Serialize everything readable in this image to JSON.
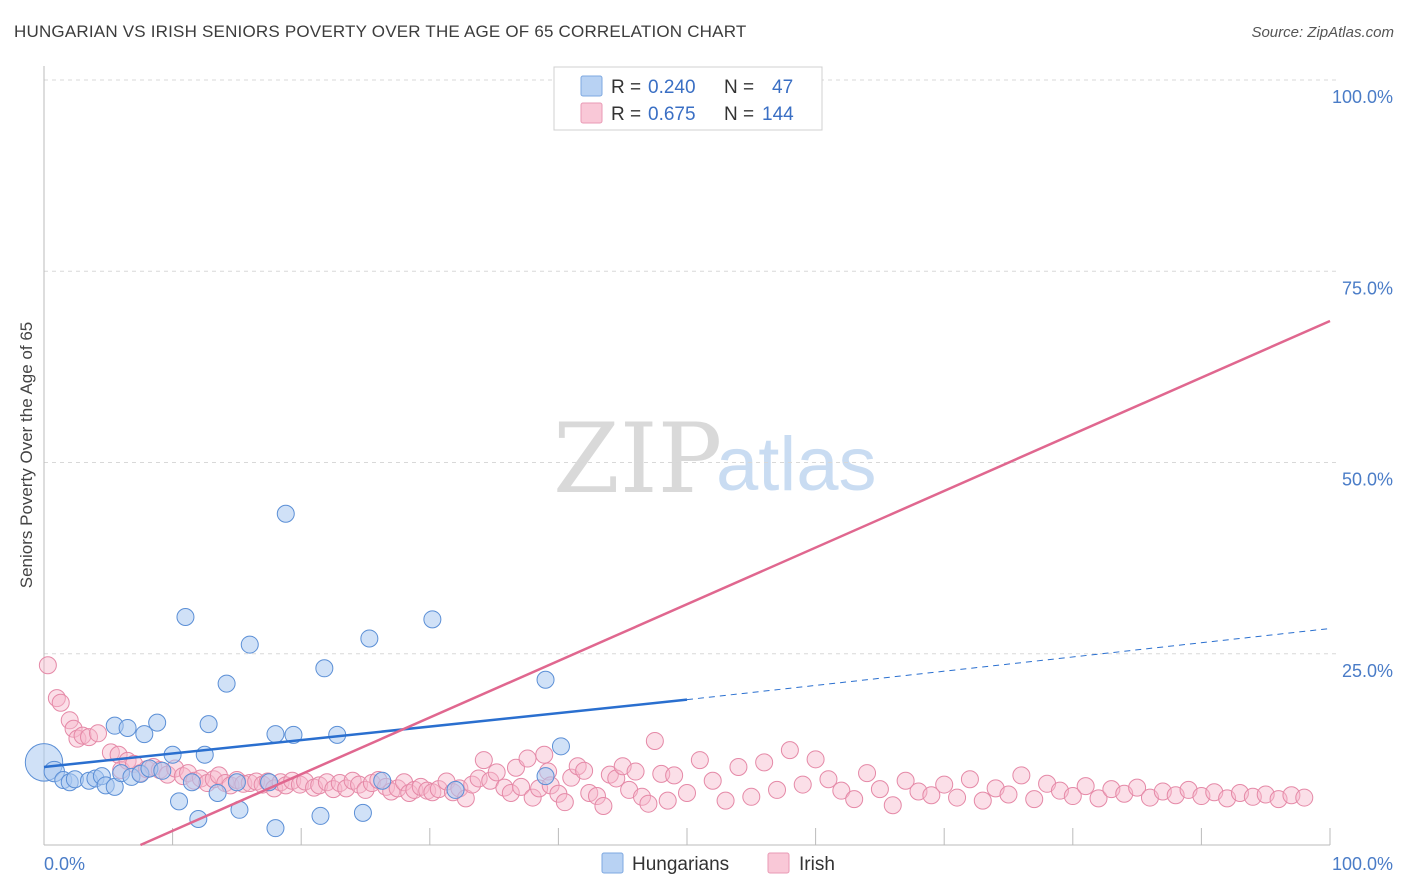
{
  "title": "HUNGARIAN VS IRISH SENIORS POVERTY OVER THE AGE OF 65 CORRELATION CHART",
  "source": "Source: ZipAtlas.com",
  "watermark": {
    "zip": "ZIP",
    "atlas": "atlas"
  },
  "colors": {
    "hungarian_fill": "#a9c8f0",
    "hungarian_stroke": "#5b8fd6",
    "hungarian_line": "#2a6fcf",
    "irish_fill": "#f7b8cb",
    "irish_stroke": "#e589a7",
    "irish_line": "#e0678f",
    "grid": "#d8d8d8",
    "axis_label": "#4a7cc7"
  },
  "legend": {
    "rows": [
      {
        "r_label": "R =",
        "r_value": "0.240",
        "n_label": "N =",
        "n_value": "47"
      },
      {
        "r_label": "R =",
        "r_value": "0.675",
        "n_label": "N =",
        "n_value": "144"
      }
    ]
  },
  "chart_data": {
    "type": "scatter",
    "ylabel": "Seniors Poverty Over the Age of 65",
    "xlim": [
      0,
      100
    ],
    "ylim": [
      0,
      100
    ],
    "x_tick_labels": [
      {
        "value": 0,
        "label": "0.0%"
      },
      {
        "value": 100,
        "label": "100.0%"
      }
    ],
    "y_tick_labels": [
      {
        "value": 25,
        "label": "25.0%"
      },
      {
        "value": 50,
        "label": "50.0%"
      },
      {
        "value": 75,
        "label": "75.0%"
      },
      {
        "value": 100,
        "label": "100.0%"
      }
    ],
    "grid": true,
    "legend_position": "bottom",
    "series": [
      {
        "name": "Hungarians",
        "trend": {
          "x0": 0,
          "y0": 10.2,
          "x1": 50,
          "y1": 19.0,
          "dashed_to_x": 100,
          "dashed_to_y": 28.3
        },
        "points": [
          [
            0.0,
            10.8,
            2.2
          ],
          [
            0.8,
            9.6,
            1.2
          ],
          [
            1.5,
            8.5,
            1
          ],
          [
            2.0,
            8.2,
            1
          ],
          [
            2.4,
            8.6,
            1
          ],
          [
            3.5,
            8.4,
            1
          ],
          [
            4.0,
            8.7,
            1
          ],
          [
            4.5,
            9.0,
            1
          ],
          [
            4.8,
            7.8,
            1
          ],
          [
            5.5,
            7.6,
            1
          ],
          [
            5.5,
            15.6,
            1
          ],
          [
            6.0,
            9.4,
            1
          ],
          [
            6.5,
            15.3,
            1
          ],
          [
            6.8,
            8.9,
            1
          ],
          [
            7.5,
            9.3,
            1
          ],
          [
            7.8,
            14.5,
            1
          ],
          [
            8.2,
            10.0,
            1
          ],
          [
            8.8,
            16.0,
            1
          ],
          [
            9.2,
            9.7,
            1
          ],
          [
            10.0,
            11.8,
            1
          ],
          [
            10.5,
            5.7,
            1
          ],
          [
            11.0,
            29.8,
            1
          ],
          [
            11.5,
            8.2,
            1
          ],
          [
            12.0,
            3.4,
            1
          ],
          [
            12.5,
            11.8,
            1
          ],
          [
            12.8,
            15.8,
            1
          ],
          [
            13.5,
            6.8,
            1
          ],
          [
            14.2,
            21.1,
            1
          ],
          [
            15.0,
            8.2,
            1
          ],
          [
            15.2,
            4.6,
            1
          ],
          [
            16.0,
            26.2,
            1
          ],
          [
            17.5,
            8.2,
            1
          ],
          [
            18.0,
            2.2,
            1
          ],
          [
            18.0,
            14.5,
            1
          ],
          [
            18.8,
            43.3,
            1
          ],
          [
            19.4,
            14.4,
            1
          ],
          [
            21.5,
            3.8,
            1
          ],
          [
            21.8,
            23.1,
            1
          ],
          [
            22.8,
            14.4,
            1
          ],
          [
            24.8,
            4.2,
            1
          ],
          [
            25.3,
            27.0,
            1
          ],
          [
            26.3,
            8.4,
            1
          ],
          [
            30.2,
            29.5,
            1
          ],
          [
            32.0,
            7.2,
            1
          ],
          [
            39.0,
            21.6,
            1
          ],
          [
            39.0,
            9.0,
            1
          ],
          [
            40.2,
            12.9,
            1
          ]
        ]
      },
      {
        "name": "Irish",
        "trend": {
          "x0": 7.5,
          "y0": 0,
          "x1": 100,
          "y1": 68.5
        },
        "points": [
          [
            0.3,
            23.5,
            1
          ],
          [
            1.0,
            19.2,
            1
          ],
          [
            1.3,
            18.6,
            1
          ],
          [
            2.0,
            16.3,
            1
          ],
          [
            2.3,
            15.2,
            1
          ],
          [
            2.6,
            13.9,
            1
          ],
          [
            3.0,
            14.3,
            1
          ],
          [
            3.5,
            14.1,
            1
          ],
          [
            4.2,
            14.6,
            1
          ],
          [
            5.2,
            12.1,
            1
          ],
          [
            5.8,
            11.8,
            1
          ],
          [
            6.0,
            9.8,
            1
          ],
          [
            6.5,
            11.0,
            1
          ],
          [
            7.0,
            10.6,
            1
          ],
          [
            7.5,
            9.4,
            1
          ],
          [
            8.0,
            9.9,
            1
          ],
          [
            8.5,
            10.2,
            1
          ],
          [
            9.0,
            9.8,
            1
          ],
          [
            9.6,
            9.2,
            1
          ],
          [
            10.2,
            10.0,
            1
          ],
          [
            10.8,
            9.0,
            1
          ],
          [
            11.2,
            9.4,
            1
          ],
          [
            11.7,
            8.4,
            1
          ],
          [
            12.2,
            8.7,
            1
          ],
          [
            12.7,
            8.1,
            1
          ],
          [
            13.2,
            8.6,
            1
          ],
          [
            13.6,
            9.1,
            1
          ],
          [
            14.1,
            8.1,
            1
          ],
          [
            14.5,
            7.8,
            1
          ],
          [
            15.0,
            8.5,
            1
          ],
          [
            15.5,
            8.0,
            1
          ],
          [
            16.0,
            8.1,
            1
          ],
          [
            16.5,
            8.3,
            1
          ],
          [
            17.0,
            7.9,
            1
          ],
          [
            17.4,
            8.3,
            1
          ],
          [
            17.9,
            7.4,
            1
          ],
          [
            18.4,
            8.2,
            1
          ],
          [
            18.8,
            7.8,
            1
          ],
          [
            19.3,
            8.4,
            1
          ],
          [
            19.9,
            7.9,
            1
          ],
          [
            20.3,
            8.3,
            1
          ],
          [
            21.0,
            7.5,
            1
          ],
          [
            21.4,
            7.8,
            1
          ],
          [
            22.0,
            8.2,
            1
          ],
          [
            22.5,
            7.3,
            1
          ],
          [
            23.0,
            8.1,
            1
          ],
          [
            23.5,
            7.4,
            1
          ],
          [
            24.0,
            8.4,
            1
          ],
          [
            24.5,
            7.9,
            1
          ],
          [
            25.0,
            7.2,
            1
          ],
          [
            25.5,
            8.1,
            1
          ],
          [
            26.0,
            8.5,
            1
          ],
          [
            26.6,
            7.6,
            1
          ],
          [
            27.0,
            7.0,
            1
          ],
          [
            27.5,
            7.4,
            1
          ],
          [
            28.0,
            8.2,
            1
          ],
          [
            28.4,
            6.8,
            1
          ],
          [
            28.8,
            7.2,
            1
          ],
          [
            29.3,
            7.6,
            1
          ],
          [
            29.8,
            7.1,
            1
          ],
          [
            30.2,
            6.9,
            1
          ],
          [
            30.7,
            7.3,
            1
          ],
          [
            31.3,
            8.3,
            1
          ],
          [
            31.8,
            6.9,
            1
          ],
          [
            32.3,
            7.4,
            1
          ],
          [
            32.8,
            6.1,
            1
          ],
          [
            33.3,
            7.9,
            1
          ],
          [
            33.8,
            8.7,
            1
          ],
          [
            34.2,
            11.1,
            1
          ],
          [
            34.7,
            8.4,
            1
          ],
          [
            35.2,
            9.5,
            1
          ],
          [
            35.8,
            7.5,
            1
          ],
          [
            36.3,
            6.8,
            1
          ],
          [
            36.7,
            10.1,
            1
          ],
          [
            37.1,
            7.6,
            1
          ],
          [
            37.6,
            11.3,
            1
          ],
          [
            38.0,
            6.2,
            1
          ],
          [
            38.5,
            7.4,
            1
          ],
          [
            38.9,
            11.8,
            1
          ],
          [
            39.2,
            9.6,
            1
          ],
          [
            39.4,
            7.8,
            1
          ],
          [
            40.0,
            6.7,
            1
          ],
          [
            40.5,
            5.6,
            1
          ],
          [
            41.0,
            8.8,
            1
          ],
          [
            41.5,
            10.3,
            1
          ],
          [
            42.0,
            9.7,
            1
          ],
          [
            42.4,
            6.8,
            1
          ],
          [
            43.0,
            6.4,
            1
          ],
          [
            43.5,
            5.1,
            1
          ],
          [
            44.0,
            9.2,
            1
          ],
          [
            44.5,
            8.7,
            1
          ],
          [
            45.0,
            10.3,
            1
          ],
          [
            45.5,
            7.2,
            1
          ],
          [
            46.0,
            9.6,
            1
          ],
          [
            46.5,
            6.3,
            1
          ],
          [
            47.0,
            5.4,
            1
          ],
          [
            47.5,
            13.6,
            1
          ],
          [
            48.0,
            9.3,
            1
          ],
          [
            48.5,
            5.8,
            1
          ],
          [
            49.0,
            9.1,
            1
          ],
          [
            50.0,
            6.8,
            1
          ],
          [
            51.0,
            11.1,
            1
          ],
          [
            52.0,
            8.4,
            1
          ],
          [
            53.0,
            5.8,
            1
          ],
          [
            54.0,
            10.2,
            1
          ],
          [
            55.0,
            6.3,
            1
          ],
          [
            56.0,
            10.8,
            1
          ],
          [
            57.0,
            7.2,
            1
          ],
          [
            58.0,
            12.4,
            1
          ],
          [
            59.0,
            7.9,
            1
          ],
          [
            60.0,
            11.2,
            1
          ],
          [
            61.0,
            8.6,
            1
          ],
          [
            62.0,
            7.1,
            1
          ],
          [
            63.0,
            6.0,
            1
          ],
          [
            64.0,
            9.4,
            1
          ],
          [
            65.0,
            7.3,
            1
          ],
          [
            66.0,
            5.2,
            1
          ],
          [
            67.0,
            8.4,
            1
          ],
          [
            68.0,
            7.0,
            1
          ],
          [
            69.0,
            6.5,
            1
          ],
          [
            70.0,
            7.9,
            1
          ],
          [
            71.0,
            6.2,
            1
          ],
          [
            72.0,
            8.6,
            1
          ],
          [
            73.0,
            5.8,
            1
          ],
          [
            74.0,
            7.4,
            1
          ],
          [
            75.0,
            6.6,
            1
          ],
          [
            76.0,
            9.1,
            1
          ],
          [
            77.0,
            6.0,
            1
          ],
          [
            78.0,
            8.0,
            1
          ],
          [
            79.0,
            7.1,
            1
          ],
          [
            80.0,
            6.4,
            1
          ],
          [
            81.0,
            7.7,
            1
          ],
          [
            82.0,
            6.1,
            1
          ],
          [
            83.0,
            7.3,
            1
          ],
          [
            84.0,
            6.7,
            1
          ],
          [
            85.0,
            7.5,
            1
          ],
          [
            86.0,
            6.2,
            1
          ],
          [
            87.0,
            7.0,
            1
          ],
          [
            88.0,
            6.5,
            1
          ],
          [
            89.0,
            7.2,
            1
          ],
          [
            90.0,
            6.4,
            1
          ],
          [
            91.0,
            6.9,
            1
          ],
          [
            92.0,
            6.1,
            1
          ],
          [
            93.0,
            6.8,
            1
          ],
          [
            94.0,
            6.3,
            1
          ],
          [
            95.0,
            6.6,
            1
          ],
          [
            96.0,
            6.0,
            1
          ],
          [
            97.0,
            6.5,
            1
          ],
          [
            98.0,
            6.2,
            1
          ]
        ]
      }
    ]
  },
  "bottom_legend": [
    {
      "label": "Hungarians"
    },
    {
      "label": "Irish"
    }
  ]
}
